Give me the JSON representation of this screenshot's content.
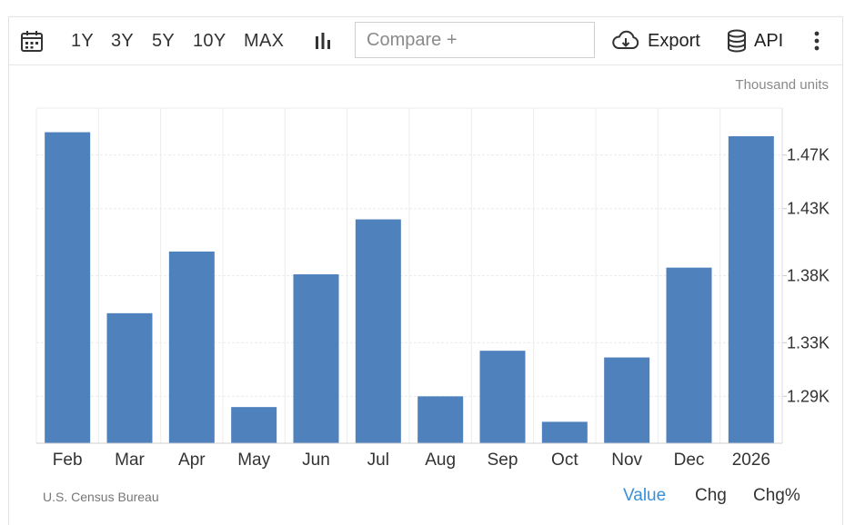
{
  "toolbar": {
    "calendar_icon": "calendar-icon",
    "ranges": [
      "1Y",
      "3Y",
      "5Y",
      "10Y",
      "MAX"
    ],
    "chart_type_icon": "bar-chart-icon",
    "compare_placeholder": "Compare +",
    "export_label": "Export",
    "api_label": "API",
    "more_icon": "more-vertical-icon"
  },
  "unit_label": "Thousand units",
  "source": "U.S. Census Bureau",
  "modes": {
    "value": "Value",
    "chg": "Chg",
    "chg_pct": "Chg%",
    "active": "value"
  },
  "colors": {
    "bar": "#4f81bd",
    "active_mode": "#3a8fd8"
  },
  "chart_data": {
    "type": "bar",
    "title": "",
    "xlabel": "",
    "ylabel": "",
    "categories": [
      "Feb",
      "Mar",
      "Apr",
      "May",
      "Jun",
      "Jul",
      "Aug",
      "Sep",
      "Oct",
      "Nov",
      "Dec",
      "2026"
    ],
    "values": [
      1487,
      1352,
      1398,
      1282,
      1381,
      1422,
      1290,
      1324,
      1271,
      1319,
      1386,
      1484
    ],
    "y_ticks": [
      1290,
      1330,
      1380,
      1430,
      1470
    ],
    "y_tick_labels": [
      "1.29K",
      "1.33K",
      "1.38K",
      "1.43K",
      "1.47K"
    ],
    "ylim": [
      1255,
      1505
    ],
    "grid": true,
    "y_axis_position": "right",
    "legend": "none"
  }
}
